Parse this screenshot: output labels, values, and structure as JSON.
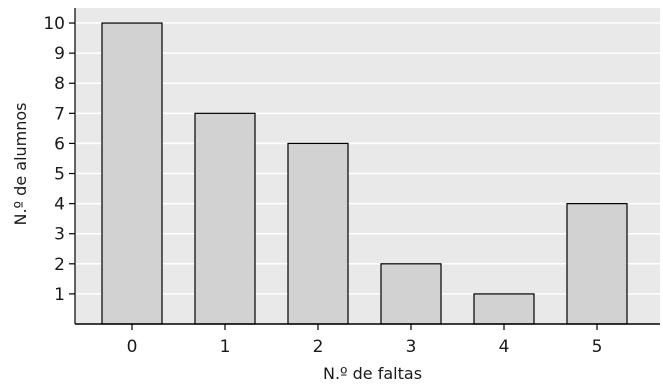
{
  "chart_data": {
    "type": "bar",
    "categories": [
      "0",
      "1",
      "2",
      "3",
      "4",
      "5"
    ],
    "values": [
      10,
      7,
      6,
      2,
      1,
      4
    ],
    "xlabel": "N.º de faltas",
    "ylabel": "N.º de alumnos",
    "ylim": [
      0,
      10.5
    ],
    "yticks": [
      "1",
      "2",
      "3",
      "4",
      "5",
      "6",
      "7",
      "8",
      "9",
      "10"
    ],
    "grid": true,
    "colors": {
      "background": "#e9e9e9",
      "grid": "#ffffff",
      "bar_fill": "#d2d2d2",
      "bar_stroke": "#000000",
      "axis": "#000000"
    }
  }
}
